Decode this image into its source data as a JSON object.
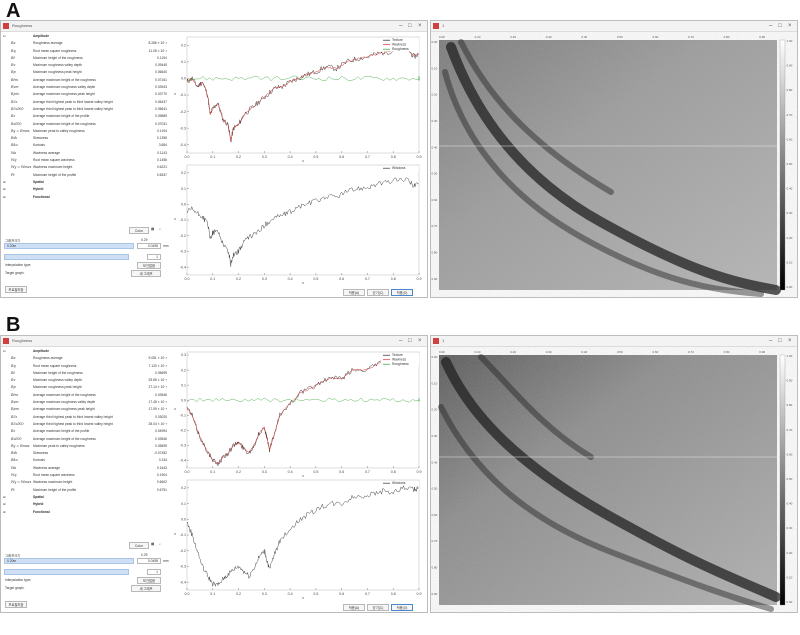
{
  "panels": [
    {
      "letter": "A",
      "window_title": "Roughness",
      "image_window_title": "1",
      "tree_head": "Amplitude",
      "params": [
        {
          "sym": "Ra",
          "label": "Roughness average",
          "value": "8.286 × 10⁻²"
        },
        {
          "sym": "Rq",
          "label": "Root mean square roughness",
          "value": "11.08 × 10⁻²"
        },
        {
          "sym": "Rt",
          "label": "Maximum height of the roughness",
          "value": "0.1194"
        },
        {
          "sym": "Rv",
          "label": "Maximum roughness valley depth",
          "value": "0.09445"
        },
        {
          "sym": "Rp",
          "label": "Maximum roughness peak height",
          "value": "0.06640"
        },
        {
          "sym": "Rtm",
          "label": "Average maximum height of the roughness",
          "value": "0.07161"
        },
        {
          "sym": "Rvm",
          "label": "Average maximum roughness valley depth",
          "value": "0.03943"
        },
        {
          "sym": "Rpm",
          "label": "Average maximum roughness peak height",
          "value": "0.03770"
        },
        {
          "sym": "R3z",
          "label": "Average third highest peak to third lowest valley height",
          "value": "0.06437"
        },
        {
          "sym": "R3zISO",
          "label": "Average third highest peak to third lowest valley height",
          "value": "0.05641"
        },
        {
          "sym": "Rz",
          "label": "Average maximum height of the profile",
          "value": "0.09889"
        },
        {
          "sym": "RzISO",
          "label": "Average maximum height of the roughness",
          "value": "0.07031"
        },
        {
          "sym": "Ry = Rmax",
          "label": "Maximum peak to valley roughness",
          "value": "0.1194"
        },
        {
          "sym": "Rsk",
          "label": "Skewness",
          "value": "0.1355"
        },
        {
          "sym": "Rku",
          "label": "Kurtosis",
          "value": "3.684"
        },
        {
          "sym": "Wa",
          "label": "Waviness average",
          "value": "0.1143"
        },
        {
          "sym": "Wq",
          "label": "Root mean square waviness",
          "value": "0.1456"
        },
        {
          "sym": "Wy = Wmax",
          "label": "Waviness maximum height",
          "value": "0.6221"
        },
        {
          "sym": "Pt",
          "label": "Maximum height of the profile",
          "value": "0.6537"
        }
      ],
      "groups": [
        "Spatial",
        "Hybrid",
        "Functional"
      ],
      "color_button": "Color",
      "cutoff_label": "그래프크기",
      "cutoff_value_label": "0.29",
      "cutoff_unit": "mm",
      "unit_field": "0.20m",
      "unit_field_right": "0.0498",
      "thickness_label": "Thickness",
      "thickness_value": "1",
      "interp_label": "Interpolation type:",
      "interp_value": "보간없음",
      "target_label": "Target graph:",
      "target_value": "새 그래프",
      "bottom_left_button": "프로필저장",
      "bottom_buttons": [
        "적용(A)",
        "닫기(C)",
        "적용(O)"
      ],
      "chart_data": {
        "type": "line",
        "x_ticks": [
          "0.0",
          "0.1",
          "0.2",
          "0.3",
          "0.4",
          "0.5",
          "0.6",
          "0.7",
          "0.8",
          "0.9"
        ],
        "y_ticks_top": [
          "0.2",
          "0.1",
          "0.0",
          "-0.1",
          "-0.2",
          "-0.3",
          "-0.4"
        ],
        "y_ticks_bottom": [
          "0.2",
          "0.1",
          "0.0",
          "-0.1",
          "-0.2",
          "-0.3",
          "-0.4"
        ],
        "xlim": [
          0,
          0.9
        ],
        "ylim": [
          -0.45,
          0.25
        ],
        "legend_top": [
          "Texture",
          "Waviness",
          "Roughness"
        ],
        "legend_bottom": [
          "Windows"
        ],
        "xlabel": "x",
        "ylabel": "z",
        "profile": [
          [
            0,
            -0.02
          ],
          [
            0.02,
            0.0
          ],
          [
            0.04,
            -0.05
          ],
          [
            0.06,
            -0.02
          ],
          [
            0.08,
            -0.1
          ],
          [
            0.09,
            -0.22
          ],
          [
            0.1,
            -0.18
          ],
          [
            0.12,
            -0.15
          ],
          [
            0.14,
            -0.25
          ],
          [
            0.16,
            -0.28
          ],
          [
            0.17,
            -0.38
          ],
          [
            0.18,
            -0.3
          ],
          [
            0.2,
            -0.28
          ],
          [
            0.22,
            -0.22
          ],
          [
            0.25,
            -0.18
          ],
          [
            0.28,
            -0.14
          ],
          [
            0.31,
            -0.1
          ],
          [
            0.34,
            -0.06
          ],
          [
            0.37,
            -0.05
          ],
          [
            0.4,
            -0.02
          ],
          [
            0.43,
            0.0
          ],
          [
            0.46,
            0.02
          ],
          [
            0.5,
            0.04
          ],
          [
            0.54,
            0.07
          ],
          [
            0.58,
            0.06
          ],
          [
            0.62,
            0.1
          ],
          [
            0.66,
            0.12
          ],
          [
            0.7,
            0.13
          ],
          [
            0.74,
            0.15
          ],
          [
            0.78,
            0.16
          ],
          [
            0.82,
            0.18
          ],
          [
            0.86,
            0.17
          ],
          [
            0.88,
            0.13
          ],
          [
            0.9,
            0.15
          ]
        ],
        "lower_profile": [
          [
            0,
            -0.05
          ],
          [
            0.02,
            -0.03
          ],
          [
            0.04,
            -0.06
          ],
          [
            0.06,
            -0.08
          ],
          [
            0.08,
            -0.12
          ],
          [
            0.09,
            -0.22
          ],
          [
            0.1,
            -0.18
          ],
          [
            0.12,
            -0.17
          ],
          [
            0.14,
            -0.25
          ],
          [
            0.16,
            -0.3
          ],
          [
            0.17,
            -0.38
          ],
          [
            0.18,
            -0.32
          ],
          [
            0.2,
            -0.3
          ],
          [
            0.22,
            -0.24
          ],
          [
            0.25,
            -0.2
          ],
          [
            0.28,
            -0.17
          ],
          [
            0.31,
            -0.12
          ],
          [
            0.34,
            -0.08
          ],
          [
            0.37,
            -0.07
          ],
          [
            0.4,
            -0.05
          ],
          [
            0.43,
            -0.02
          ],
          [
            0.46,
            0.0
          ],
          [
            0.5,
            0.02
          ],
          [
            0.54,
            0.05
          ],
          [
            0.58,
            0.05
          ],
          [
            0.62,
            0.08
          ],
          [
            0.66,
            0.1
          ],
          [
            0.7,
            0.11
          ],
          [
            0.74,
            0.13
          ],
          [
            0.78,
            0.14
          ],
          [
            0.82,
            0.16
          ],
          [
            0.86,
            0.15
          ],
          [
            0.88,
            0.12
          ],
          [
            0.9,
            0.13
          ]
        ]
      },
      "image_top_ticks": [
        "0.00",
        "0.10",
        "0.20",
        "0.30",
        "0.40",
        "0.50",
        "0.60",
        "0.70",
        "0.80",
        "0.90"
      ],
      "image_bottom_ticks": [
        "0.00",
        "0.10",
        "0.20",
        "0.30",
        "0.40",
        "0.50",
        "0.60",
        "0.70",
        "0.80",
        "0.90"
      ],
      "colorbar_ticks": [
        "1.00",
        "0.90",
        "0.80",
        "0.70",
        "0.60",
        "0.50",
        "0.40",
        "0.30",
        "0.20",
        "0.10",
        "0.00"
      ]
    },
    {
      "letter": "B",
      "window_title": "Roughness",
      "image_window_title": "1",
      "tree_head": "Amplitude",
      "params": [
        {
          "sym": "Ra",
          "label": "Roughness average",
          "value": "9.051 × 10⁻²"
        },
        {
          "sym": "Rq",
          "label": "Root mean square roughness",
          "value": "7.120 × 10⁻²"
        },
        {
          "sym": "Rt",
          "label": "Maximum height of the roughness",
          "value": "0.05699"
        },
        {
          "sym": "Rv",
          "label": "Maximum roughness valley depth",
          "value": "29.65 × 10⁻³"
        },
        {
          "sym": "Rp",
          "label": "Maximum roughness peak height",
          "value": "27.14 × 10⁻³"
        },
        {
          "sym": "Rtm",
          "label": "Average maximum height of the roughness",
          "value": "0.03546"
        },
        {
          "sym": "Rvm",
          "label": "Average maximum roughness valley depth",
          "value": "17.45 × 10⁻³"
        },
        {
          "sym": "Rpm",
          "label": "Average maximum roughness peak height",
          "value": "17.09 × 10⁻³"
        },
        {
          "sym": "R3z",
          "label": "Average third highest peak to third lowest valley height",
          "value": "0.03020"
        },
        {
          "sym": "R3zISO",
          "label": "Average third highest peak to third lowest valley height",
          "value": "28.04 × 10⁻³"
        },
        {
          "sym": "Rz",
          "label": "Average maximum height of the profile",
          "value": "0.04994"
        },
        {
          "sym": "RzISO",
          "label": "Average maximum height of the roughness",
          "value": "0.03546"
        },
        {
          "sym": "Ry = Rmax",
          "label": "Maximum peak to valley roughness",
          "value": "0.05699"
        },
        {
          "sym": "Rsk",
          "label": "Skewness",
          "value": "-0.07452"
        },
        {
          "sym": "Rku",
          "label": "Kurtosis",
          "value": "3.134"
        },
        {
          "sym": "Wa",
          "label": "Waviness average",
          "value": "0.1643"
        },
        {
          "sym": "Wq",
          "label": "Root mean square waviness",
          "value": "0.1904"
        },
        {
          "sym": "Wy = Wmax",
          "label": "Waviness maximum height",
          "value": "0.6602"
        },
        {
          "sym": "Pt",
          "label": "Maximum height of the profile",
          "value": "0.6751"
        }
      ],
      "groups": [
        "Spatial",
        "Hybrid",
        "Functional"
      ],
      "color_button": "Color",
      "cutoff_label": "그래프크기",
      "cutoff_value_label": "0.29",
      "cutoff_unit": "mm",
      "unit_field": "0.20m",
      "unit_field_right": "0.0498",
      "thickness_label": "Thickness",
      "thickness_value": "1",
      "interp_label": "Interpolation type:",
      "interp_value": "보간없음",
      "target_label": "Target graph:",
      "target_value": "새 그래프",
      "bottom_left_button": "프로필저장",
      "bottom_buttons": [
        "적용(A)",
        "닫기(C)",
        "적용(O)"
      ],
      "chart_data": {
        "type": "line",
        "x_ticks": [
          "0.0",
          "0.1",
          "0.2",
          "0.3",
          "0.4",
          "0.5",
          "0.6",
          "0.7",
          "0.8",
          "0.9"
        ],
        "y_ticks_top": [
          "0.3",
          "0.2",
          "0.1",
          "0.0",
          "-0.1",
          "-0.2",
          "-0.3",
          "-0.4"
        ],
        "y_ticks_bottom": [
          "0.2",
          "0.1",
          "0.0",
          "-0.1",
          "-0.2",
          "-0.3",
          "-0.4"
        ],
        "xlim": [
          0,
          0.9
        ],
        "ylim": [
          -0.45,
          0.32
        ],
        "legend_top": [
          "Texture",
          "Waviness",
          "Roughness"
        ],
        "legend_bottom": [
          "Windows"
        ],
        "xlabel": "x",
        "ylabel": "z",
        "profile": [
          [
            0,
            -0.05
          ],
          [
            0.02,
            -0.1
          ],
          [
            0.04,
            -0.2
          ],
          [
            0.06,
            -0.28
          ],
          [
            0.08,
            -0.34
          ],
          [
            0.1,
            -0.4
          ],
          [
            0.12,
            -0.42
          ],
          [
            0.14,
            -0.38
          ],
          [
            0.16,
            -0.35
          ],
          [
            0.18,
            -0.3
          ],
          [
            0.2,
            -0.28
          ],
          [
            0.22,
            -0.32
          ],
          [
            0.24,
            -0.35
          ],
          [
            0.26,
            -0.3
          ],
          [
            0.28,
            -0.22
          ],
          [
            0.3,
            -0.18
          ],
          [
            0.31,
            -0.25
          ],
          [
            0.32,
            -0.33
          ],
          [
            0.34,
            -0.22
          ],
          [
            0.36,
            -0.1
          ],
          [
            0.4,
            -0.02
          ],
          [
            0.44,
            0.05
          ],
          [
            0.48,
            0.08
          ],
          [
            0.52,
            0.12
          ],
          [
            0.56,
            0.15
          ],
          [
            0.6,
            0.14
          ],
          [
            0.64,
            0.2
          ],
          [
            0.68,
            0.2
          ],
          [
            0.72,
            0.22
          ],
          [
            0.76,
            0.26
          ],
          [
            0.8,
            0.23
          ],
          [
            0.84,
            0.28
          ],
          [
            0.88,
            0.27
          ],
          [
            0.9,
            0.29
          ]
        ],
        "lower_profile": [
          [
            0,
            -0.02
          ],
          [
            0.02,
            -0.1
          ],
          [
            0.04,
            -0.2
          ],
          [
            0.06,
            -0.3
          ],
          [
            0.08,
            -0.36
          ],
          [
            0.1,
            -0.41
          ],
          [
            0.12,
            -0.42
          ],
          [
            0.14,
            -0.38
          ],
          [
            0.16,
            -0.35
          ],
          [
            0.18,
            -0.32
          ],
          [
            0.2,
            -0.3
          ],
          [
            0.22,
            -0.33
          ],
          [
            0.24,
            -0.36
          ],
          [
            0.26,
            -0.31
          ],
          [
            0.28,
            -0.24
          ],
          [
            0.3,
            -0.2
          ],
          [
            0.31,
            -0.26
          ],
          [
            0.32,
            -0.32
          ],
          [
            0.34,
            -0.22
          ],
          [
            0.36,
            -0.14
          ],
          [
            0.4,
            -0.06
          ],
          [
            0.44,
            0.0
          ],
          [
            0.48,
            0.04
          ],
          [
            0.52,
            0.08
          ],
          [
            0.56,
            0.1
          ],
          [
            0.6,
            0.1
          ],
          [
            0.64,
            0.14
          ],
          [
            0.68,
            0.15
          ],
          [
            0.72,
            0.16
          ],
          [
            0.76,
            0.18
          ],
          [
            0.8,
            0.17
          ],
          [
            0.84,
            0.2
          ],
          [
            0.88,
            0.19
          ],
          [
            0.9,
            0.2
          ]
        ]
      },
      "image_top_ticks": [
        "0.00",
        "0.10",
        "0.20",
        "0.30",
        "0.40",
        "0.50",
        "0.60",
        "0.70",
        "0.80",
        "0.90"
      ],
      "image_bottom_ticks": [
        "0.00",
        "0.10",
        "0.20",
        "0.30",
        "0.40",
        "0.50",
        "0.60",
        "0.70",
        "0.80",
        "0.90"
      ],
      "colorbar_ticks": [
        "1.00",
        "0.90",
        "0.80",
        "0.70",
        "0.60",
        "0.50",
        "0.40",
        "0.30",
        "0.20",
        "0.10",
        "0.00"
      ]
    }
  ],
  "colors": {
    "texture": "#222222",
    "waviness": "#d9302c",
    "roughness": "#2ca02c",
    "accent": "#cfe0f5"
  }
}
